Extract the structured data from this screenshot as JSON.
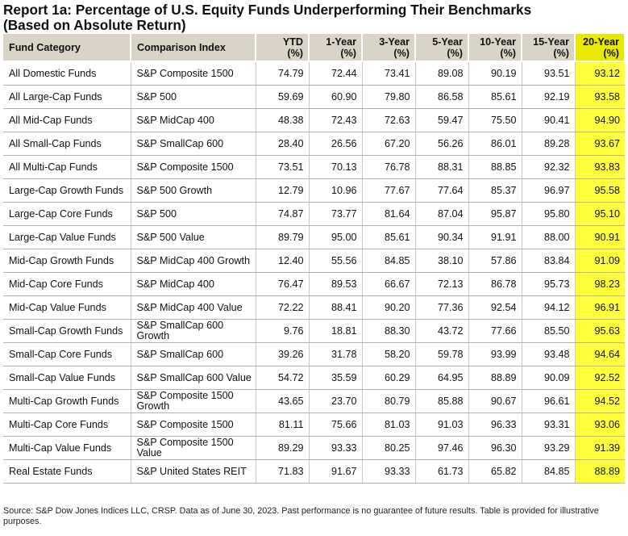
{
  "title": {
    "line1": "Report 1a: Percentage of U.S. Equity Funds Underperforming Their Benchmarks",
    "line2": "(Based on Absolute Return)"
  },
  "columns": [
    {
      "line1": "Fund Category",
      "line2": ""
    },
    {
      "line1": "Comparison Index",
      "line2": ""
    },
    {
      "line1": "YTD",
      "line2": "(%)"
    },
    {
      "line1": "1-Year",
      "line2": "(%)"
    },
    {
      "line1": "3-Year",
      "line2": "(%)"
    },
    {
      "line1": "5-Year",
      "line2": "(%)"
    },
    {
      "line1": "10-Year",
      "line2": "(%)"
    },
    {
      "line1": "15-Year",
      "line2": "(%)"
    },
    {
      "line1": "20-Year",
      "line2": "(%)"
    }
  ],
  "rows": [
    {
      "category": "All Domestic Funds",
      "index": "S&P Composite 1500",
      "ytd": "74.79",
      "y1": "72.44",
      "y3": "73.41",
      "y5": "89.08",
      "y10": "90.19",
      "y15": "93.51",
      "y20": "93.12"
    },
    {
      "category": "All Large-Cap Funds",
      "index": "S&P 500",
      "ytd": "59.69",
      "y1": "60.90",
      "y3": "79.80",
      "y5": "86.58",
      "y10": "85.61",
      "y15": "92.19",
      "y20": "93.58"
    },
    {
      "category": "All Mid-Cap Funds",
      "index": "S&P MidCap 400",
      "ytd": "48.38",
      "y1": "72.43",
      "y3": "72.63",
      "y5": "59.47",
      "y10": "75.50",
      "y15": "90.41",
      "y20": "94.90"
    },
    {
      "category": "All Small-Cap Funds",
      "index": "S&P SmallCap 600",
      "ytd": "28.40",
      "y1": "26.56",
      "y3": "67.20",
      "y5": "56.26",
      "y10": "86.01",
      "y15": "89.28",
      "y20": "93.67"
    },
    {
      "category": "All Multi-Cap Funds",
      "index": "S&P Composite 1500",
      "ytd": "73.51",
      "y1": "70.13",
      "y3": "76.78",
      "y5": "88.31",
      "y10": "88.85",
      "y15": "92.32",
      "y20": "93.83"
    },
    {
      "category": "Large-Cap Growth Funds",
      "index": "S&P 500 Growth",
      "ytd": "12.79",
      "y1": "10.96",
      "y3": "77.67",
      "y5": "77.64",
      "y10": "85.37",
      "y15": "96.97",
      "y20": "95.58"
    },
    {
      "category": "Large-Cap Core Funds",
      "index": "S&P 500",
      "ytd": "74.87",
      "y1": "73.77",
      "y3": "81.64",
      "y5": "87.04",
      "y10": "95.87",
      "y15": "95.80",
      "y20": "95.10"
    },
    {
      "category": "Large-Cap Value Funds",
      "index": "S&P 500 Value",
      "ytd": "89.79",
      "y1": "95.00",
      "y3": "85.61",
      "y5": "90.34",
      "y10": "91.91",
      "y15": "88.00",
      "y20": "90.91"
    },
    {
      "category": "Mid-Cap Growth Funds",
      "index": "S&P MidCap 400 Growth",
      "ytd": "12.40",
      "y1": "55.56",
      "y3": "84.85",
      "y5": "38.10",
      "y10": "57.86",
      "y15": "83.84",
      "y20": "91.09"
    },
    {
      "category": "Mid-Cap Core Funds",
      "index": "S&P MidCap 400",
      "ytd": "76.47",
      "y1": "89.53",
      "y3": "66.67",
      "y5": "72.13",
      "y10": "86.78",
      "y15": "95.73",
      "y20": "98.23"
    },
    {
      "category": "Mid-Cap Value Funds",
      "index": "S&P MidCap 400 Value",
      "ytd": "72.22",
      "y1": "88.41",
      "y3": "90.20",
      "y5": "77.36",
      "y10": "92.54",
      "y15": "94.12",
      "y20": "96.91"
    },
    {
      "category": "Small-Cap Growth Funds",
      "index": "S&P SmallCap 600 Growth",
      "ytd": "9.76",
      "y1": "18.81",
      "y3": "88.30",
      "y5": "43.72",
      "y10": "77.66",
      "y15": "85.50",
      "y20": "95.63"
    },
    {
      "category": "Small-Cap Core Funds",
      "index": "S&P SmallCap 600",
      "ytd": "39.26",
      "y1": "31.78",
      "y3": "58.20",
      "y5": "59.78",
      "y10": "93.99",
      "y15": "93.48",
      "y20": "94.64"
    },
    {
      "category": "Small-Cap Value Funds",
      "index": "S&P SmallCap 600 Value",
      "ytd": "54.72",
      "y1": "35.59",
      "y3": "60.29",
      "y5": "64.95",
      "y10": "88.89",
      "y15": "90.09",
      "y20": "92.52"
    },
    {
      "category": "Multi-Cap Growth Funds",
      "index": "S&P Composite 1500 Growth",
      "ytd": "43.65",
      "y1": "23.70",
      "y3": "80.79",
      "y5": "85.88",
      "y10": "90.67",
      "y15": "96.61",
      "y20": "94.52"
    },
    {
      "category": "Multi-Cap Core Funds",
      "index": "S&P Composite 1500",
      "ytd": "81.11",
      "y1": "75.66",
      "y3": "81.03",
      "y5": "91.03",
      "y10": "96.33",
      "y15": "93.31",
      "y20": "93.06"
    },
    {
      "category": "Multi-Cap Value Funds",
      "index": "S&P Composite 1500 Value",
      "ytd": "89.29",
      "y1": "93.33",
      "y3": "80.25",
      "y5": "97.46",
      "y10": "96.30",
      "y15": "93.29",
      "y20": "91.39"
    },
    {
      "category": "Real Estate Funds",
      "index": "S&P United States REIT",
      "ytd": "71.83",
      "y1": "91.67",
      "y3": "93.33",
      "y5": "61.73",
      "y10": "65.82",
      "y15": "84.85",
      "y20": "88.89"
    }
  ],
  "footnote": "Source: S&P Dow Jones Indices LLC, CRSP.  Data as of June 30, 2023.  Past performance is no guarantee of future results.  Table is provided for illustrative purposes.",
  "colors": {
    "header_bg": "#d9d4c6",
    "highlight_header": "#e8e800",
    "highlight_column": "#ffff3c",
    "row_divider": "#b9b2a4"
  }
}
